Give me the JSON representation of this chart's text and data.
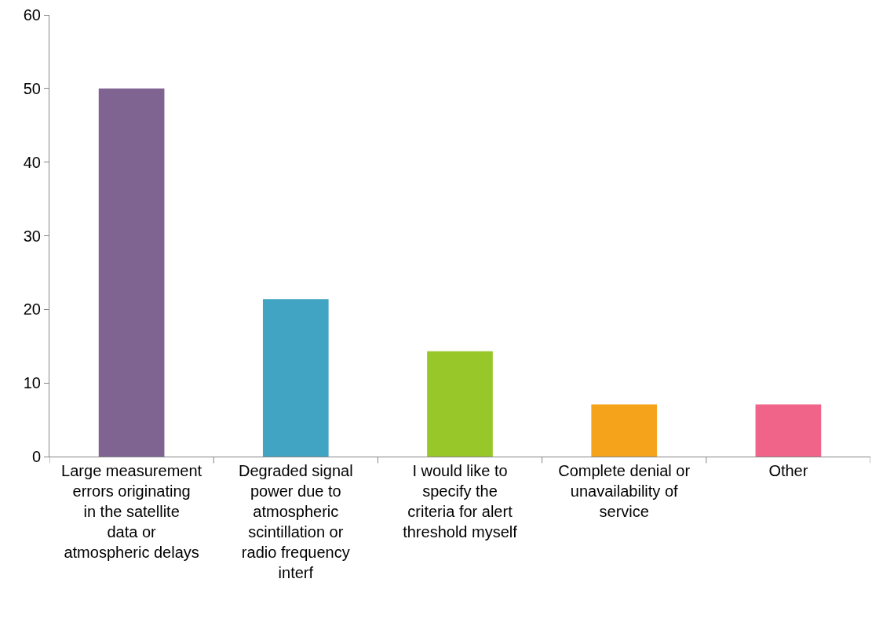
{
  "chart_data": {
    "type": "bar",
    "categories": [
      "Large measurement errors originating in the satellite data or atmospheric delays",
      "Degraded signal power due to atmospheric scintillation or radio frequency interf",
      "I would like to specify the criteria for alert threshold myself",
      "Complete denial or unavailability of service",
      "Other"
    ],
    "values": [
      50,
      21.4,
      14.3,
      7.1,
      7.1
    ],
    "colors": [
      "#7f6391",
      "#41a4c3",
      "#98c72a",
      "#f5a31b",
      "#ef6488"
    ],
    "ylim": [
      0,
      60
    ],
    "yticks": [
      0,
      10,
      20,
      30,
      40,
      50,
      60
    ]
  }
}
